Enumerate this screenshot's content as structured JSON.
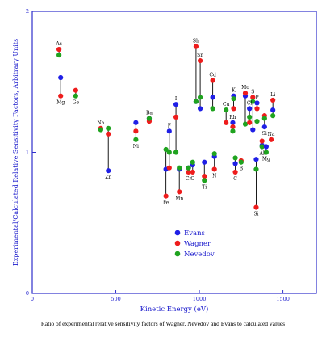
{
  "caption": "Ratio of experimental relative sensitivity factors of Wagner, Nevedov and Evans to calculated values",
  "chart_data": {
    "type": "scatter",
    "xlabel": "Kinetic Energy (eV)",
    "ylabel": "Experimental/Calculated Relative Sensitivity Factors, Arbitrary Units",
    "xlim": [
      0,
      1700
    ],
    "ylim": [
      0,
      2
    ],
    "x_ticks": [
      "0",
      "500",
      "1000",
      "1500"
    ],
    "y_ticks": [
      "0",
      "1",
      "2"
    ],
    "legend_position": "bottom-center",
    "grid": false,
    "series": [
      {
        "name": "Evans",
        "color": "#1f1fe6"
      },
      {
        "name": "Wagner",
        "color": "#ee1c1c"
      },
      {
        "name": "Nevedov",
        "color": "#1fa31f"
      }
    ],
    "elements": [
      {
        "label": "As",
        "x": 160,
        "evans": null,
        "wagner": 1.73,
        "nevedov": 1.69
      },
      {
        "label": "Mg",
        "x": 170,
        "evans": 1.53,
        "wagner": 1.4,
        "nevedov": null
      },
      {
        "label": "Ge",
        "x": 260,
        "evans": null,
        "wagner": 1.44,
        "nevedov": 1.4
      },
      {
        "label": "Na",
        "x": 410,
        "evans": null,
        "wagner": 1.17,
        "nevedov": 1.16
      },
      {
        "label": "Zn",
        "x": 455,
        "evans": 0.87,
        "wagner": 1.13,
        "nevedov": 1.17
      },
      {
        "label": "Ni",
        "x": 620,
        "evans": 1.21,
        "wagner": 1.15,
        "nevedov": 1.09
      },
      {
        "label": "Ba",
        "x": 700,
        "evans": 1.24,
        "wagner": 1.22,
        "nevedov": 1.24
      },
      {
        "label": "Fe",
        "x": 800,
        "evans": 0.88,
        "wagner": 0.69,
        "nevedov": 1.02
      },
      {
        "label": "F",
        "x": 820,
        "evans": 1.15,
        "wagner": 0.89,
        "nevedov": 1.0
      },
      {
        "label": "I",
        "x": 860,
        "evans": 1.34,
        "wagner": 1.25,
        "nevedov": 1.0
      },
      {
        "label": "Mn",
        "x": 880,
        "evans": 0.88,
        "wagner": 0.72,
        "nevedov": 0.89
      },
      {
        "label": "Cr",
        "x": 935,
        "evans": 0.89,
        "wagner": 0.86,
        "nevedov": 0.89
      },
      {
        "label": "O",
        "x": 960,
        "evans": 0.91,
        "wagner": 0.86,
        "nevedov": 0.93
      },
      {
        "label": "Sh",
        "x": 980,
        "evans": 1.36,
        "wagner": 1.75,
        "nevedov": 1.36
      },
      {
        "label": "Sn",
        "x": 1005,
        "evans": 1.31,
        "wagner": 1.65,
        "nevedov": 1.39
      },
      {
        "label": "Ti",
        "x": 1030,
        "evans": 0.93,
        "wagner": 0.83,
        "nevedov": 0.8
      },
      {
        "label": "Cd",
        "x": 1080,
        "evans": 1.39,
        "wagner": 1.51,
        "nevedov": 1.31
      },
      {
        "label": "N",
        "x": 1090,
        "evans": 0.97,
        "wagner": 0.88,
        "nevedov": 0.99
      },
      {
        "label": "Cu",
        "x": 1160,
        "evans": null,
        "wagner": 1.21,
        "nevedov": 1.3
      },
      {
        "label": "Rh",
        "x": 1200,
        "evans": 1.21,
        "wagner": 1.18,
        "nevedov": 1.15
      },
      {
        "label": "K",
        "x": 1205,
        "evans": 1.4,
        "wagner": 1.31,
        "nevedov": 1.38
      },
      {
        "label": "C",
        "x": 1215,
        "evans": 0.92,
        "wagner": 0.86,
        "nevedov": 0.96
      },
      {
        "label": "B",
        "x": 1250,
        "evans": null,
        "wagner": 0.94,
        "nevedov": 0.93
      },
      {
        "label": "Mo",
        "x": 1275,
        "evans": 1.4,
        "wagner": 1.42,
        "nevedov": 1.2
      },
      {
        "label": "Cl",
        "x": 1300,
        "evans": 1.31,
        "wagner": 1.21,
        "nevedov": 1.25
      },
      {
        "label": "S",
        "x": 1320,
        "evans": 1.16,
        "wagner": 1.39,
        "nevedov": 1.36
      },
      {
        "label": "Si",
        "x": 1340,
        "evans": 0.95,
        "wagner": 0.61,
        "nevedov": 0.88
      },
      {
        "label": "P",
        "x": 1345,
        "evans": 1.35,
        "wagner": 1.31,
        "nevedov": 1.22
      },
      {
        "label": "Al",
        "x": 1375,
        "evans": 1.05,
        "wagner": 1.08,
        "nevedov": 1.04
      },
      {
        "label": "Si",
        "x": 1390,
        "evans": 1.18,
        "wagner": 1.26,
        "nevedov": 1.24
      },
      {
        "label": "Mg",
        "x": 1400,
        "evans": 1.04,
        "wagner": null,
        "nevedov": 1.0
      },
      {
        "label": "Li",
        "x": 1440,
        "evans": 1.3,
        "wagner": 1.37,
        "nevedov": 1.26
      },
      {
        "label": "Na",
        "x": 1430,
        "evans": null,
        "wagner": 1.09,
        "nevedov": null
      }
    ]
  }
}
